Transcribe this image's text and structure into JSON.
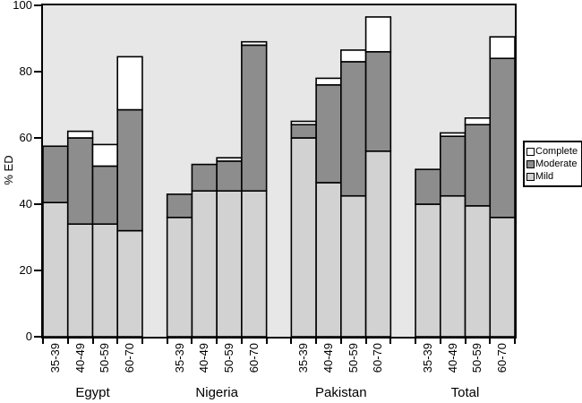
{
  "figure": {
    "background": "#ffffff",
    "plot_background": "#e7e7e7",
    "axis_color": "#000000"
  },
  "chart_data": {
    "type": "bar",
    "stacked": true,
    "title": "",
    "xlabel": "",
    "ylabel": "% ED",
    "ylim": [
      0,
      100
    ],
    "yticks": [
      0,
      20,
      40,
      60,
      80,
      100
    ],
    "grid": false,
    "bar_border_color": "#000000",
    "age_groups": [
      "35-39",
      "40-49",
      "50-59",
      "60-70"
    ],
    "stack_order": [
      "Mild",
      "Moderate",
      "Complete"
    ],
    "legend": {
      "position": "right",
      "entries": [
        {
          "label": "Complete",
          "color": "#ffffff"
        },
        {
          "label": "Moderate",
          "color": "#8d8d8d"
        },
        {
          "label": "Mild",
          "color": "#d2d2d2"
        }
      ]
    },
    "groups": [
      {
        "label": "Egypt",
        "series": {
          "Mild": [
            40.5,
            34,
            34,
            32
          ],
          "Moderate": [
            17,
            26,
            17.5,
            36.5
          ],
          "Complete": [
            0,
            2,
            6.5,
            16
          ]
        }
      },
      {
        "label": "Nigeria",
        "series": {
          "Mild": [
            36,
            44,
            44,
            44
          ],
          "Moderate": [
            7,
            8,
            9,
            44
          ],
          "Complete": [
            0,
            0,
            1,
            1
          ]
        }
      },
      {
        "label": "Pakistan",
        "series": {
          "Mild": [
            60,
            46.5,
            42.5,
            56
          ],
          "Moderate": [
            4,
            29.5,
            40.5,
            30
          ],
          "Complete": [
            1,
            2,
            3.5,
            10.5
          ]
        }
      },
      {
        "label": "Total",
        "series": {
          "Mild": [
            40,
            42.5,
            39.5,
            36
          ],
          "Moderate": [
            10.5,
            18,
            24.5,
            48
          ],
          "Complete": [
            0,
            1,
            2,
            6.5
          ]
        }
      }
    ]
  }
}
